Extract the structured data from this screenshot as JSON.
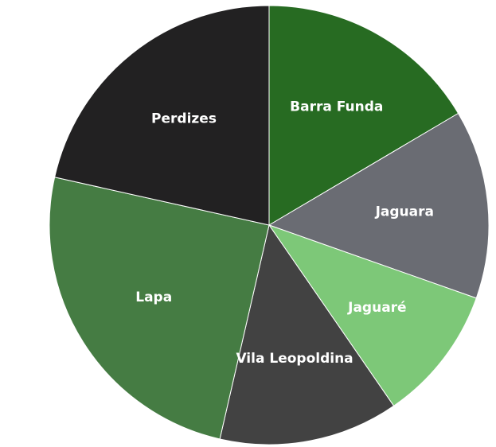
{
  "chart_data": {
    "type": "pie",
    "title": "",
    "start_angle_deg": 0,
    "direction": "clockwise",
    "slices": [
      {
        "label": "Barra Funda",
        "value": 16.5,
        "color": "#276b22"
      },
      {
        "label": "Jaguara",
        "value": 13.9,
        "color": "#6a6c73"
      },
      {
        "label": "Jaguaré",
        "value": 10.0,
        "color": "#7dc878"
      },
      {
        "label": "Vila Leopoldina",
        "value": 13.2,
        "color": "#424242"
      },
      {
        "label": "Lapa",
        "value": 24.9,
        "color": "#457c43"
      },
      {
        "label": "Perdizes",
        "value": 21.5,
        "color": "#222122"
      }
    ]
  }
}
